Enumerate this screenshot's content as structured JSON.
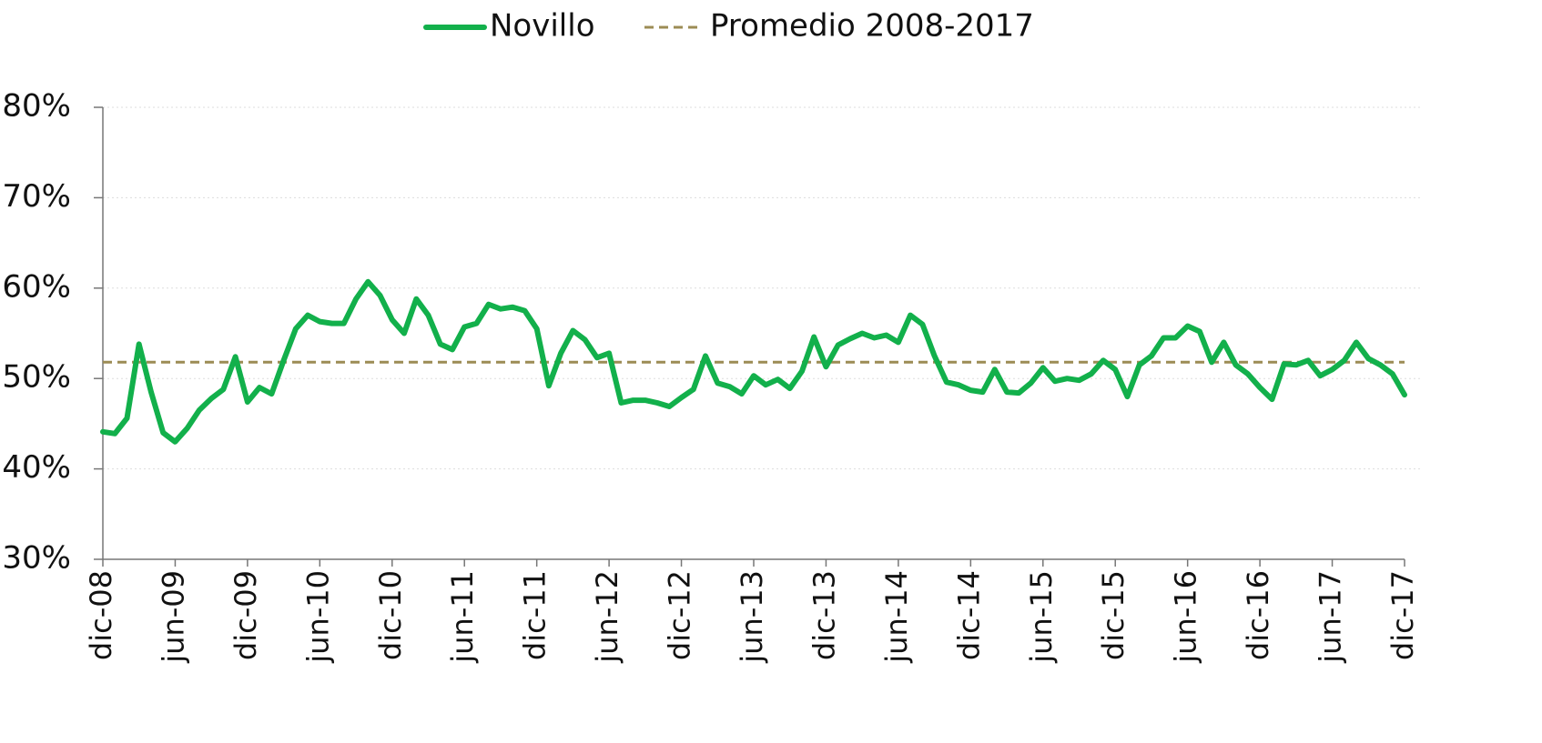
{
  "chart_data": {
    "type": "line",
    "categories": [
      "dic-08",
      null,
      null,
      null,
      null,
      null,
      "jun-09",
      null,
      null,
      null,
      null,
      null,
      "dic-09",
      null,
      null,
      null,
      null,
      null,
      "jun-10",
      null,
      null,
      null,
      null,
      null,
      "dic-10",
      null,
      null,
      null,
      null,
      null,
      "jun-11",
      null,
      null,
      null,
      null,
      null,
      "dic-11",
      null,
      null,
      null,
      null,
      null,
      "jun-12",
      null,
      null,
      null,
      null,
      null,
      "dic-12",
      null,
      null,
      null,
      null,
      null,
      "jun-13",
      null,
      null,
      null,
      null,
      null,
      "dic-13",
      null,
      null,
      null,
      null,
      null,
      "jun-14",
      null,
      null,
      null,
      null,
      null,
      "dic-14",
      null,
      null,
      null,
      null,
      null,
      "jun-15",
      null,
      null,
      null,
      null,
      null,
      "dic-15",
      null,
      null,
      null,
      null,
      null,
      "jun-16",
      null,
      null,
      null,
      null,
      null,
      "dic-16",
      null,
      null,
      null,
      null,
      null,
      "jun-17",
      null,
      null,
      null,
      null,
      null,
      "dic-17"
    ],
    "series": [
      {
        "name": "Novillo",
        "color": "#12b04b",
        "values": [
          44.1,
          43.9,
          45.6,
          53.8,
          48.5,
          44,
          43,
          44.5,
          46.5,
          47.8,
          48.8,
          52.4,
          47.4,
          49,
          48.3,
          52,
          55.5,
          57,
          56.3,
          56.1,
          56.1,
          58.8,
          60.7,
          59.2,
          56.5,
          55,
          58.8,
          57,
          53.8,
          53.2,
          55.7,
          56.1,
          58.2,
          57.7,
          57.9,
          57.5,
          55.5,
          49.2,
          52.8,
          55.3,
          54.3,
          52.3,
          52.8,
          47.3,
          47.6,
          47.6,
          47.3,
          46.9,
          47.9,
          48.8,
          52.5,
          49.5,
          49.1,
          48.3,
          50.3,
          49.3,
          49.9,
          48.9,
          50.8,
          54.6,
          51.3,
          53.7,
          54.4,
          55,
          54.5,
          54.8,
          54,
          57,
          56,
          52.5,
          49.6,
          49.3,
          48.7,
          48.5,
          51,
          48.5,
          48.4,
          49.5,
          51.2,
          49.7,
          50,
          49.8,
          50.5,
          52,
          51,
          48,
          51.5,
          52.5,
          54.5,
          54.5,
          55.8,
          55.2,
          51.8,
          54,
          51.5,
          50.5,
          49,
          47.7,
          51.6,
          51.5,
          52,
          50.3,
          51,
          52,
          54,
          52.2,
          51.5,
          50.5,
          48.2
        ]
      }
    ],
    "average": {
      "name": "Promedio 2008-2017",
      "value": 51.8,
      "color": "#9c8c55"
    },
    "ylim": [
      30,
      80
    ],
    "yticks": [
      {
        "value": 30,
        "label": "30%"
      },
      {
        "value": 40,
        "label": "40%"
      },
      {
        "value": 50,
        "label": "50%"
      },
      {
        "value": 60,
        "label": "60%"
      },
      {
        "value": 70,
        "label": "70%"
      },
      {
        "value": 80,
        "label": "80%"
      }
    ],
    "grid": true,
    "legend": "top"
  }
}
